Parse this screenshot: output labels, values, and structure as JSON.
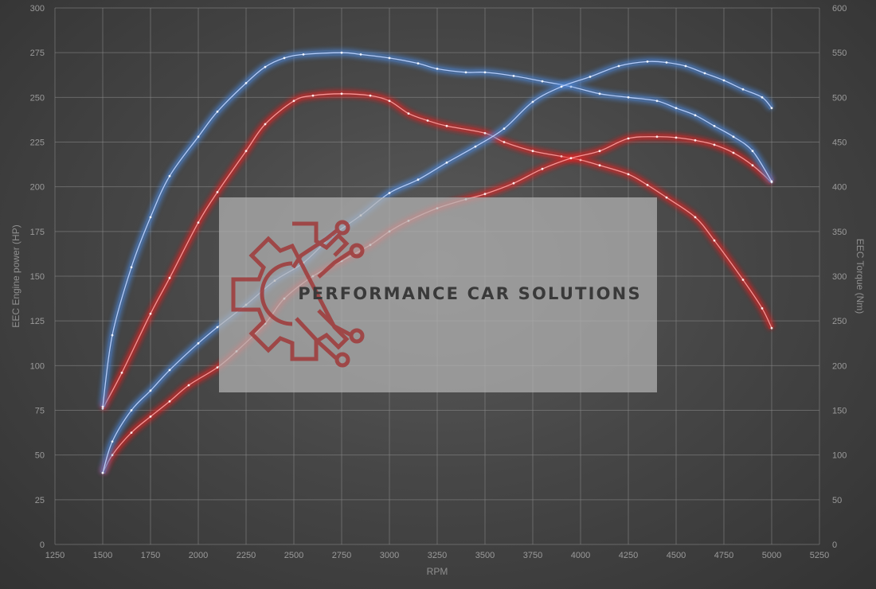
{
  "chart_data": {
    "type": "line",
    "xlabel": "RPM",
    "ylabel_left": "EEC Engine power (HP)",
    "ylabel_right": "EEC Torque (Nm)",
    "xlim": [
      1250,
      5250
    ],
    "xticks": [
      1250,
      1500,
      1750,
      2000,
      2250,
      2500,
      2750,
      3000,
      3250,
      3500,
      3750,
      4000,
      4250,
      4500,
      4750,
      5000,
      5250
    ],
    "ylim_left": [
      0,
      300
    ],
    "yticks_left": [
      0,
      25,
      50,
      75,
      100,
      125,
      150,
      175,
      200,
      225,
      250,
      275,
      300
    ],
    "ylim_right": [
      0,
      600
    ],
    "yticks_right": [
      0,
      50,
      100,
      150,
      200,
      250,
      300,
      350,
      400,
      450,
      500,
      550,
      600
    ],
    "grid": true,
    "series": [
      {
        "color": "#e02020",
        "axis": "left",
        "x": [
          1500,
          1600,
          1750,
          1850,
          2000,
          2100,
          2250,
          2350,
          2500,
          2600,
          2750,
          2900,
          3000,
          3100,
          3200,
          3300,
          3500,
          3600,
          3750,
          3900,
          4000,
          4100,
          4250,
          4350,
          4450,
          4600,
          4700,
          4850,
          4950,
          5000
        ],
        "values": [
          76,
          96,
          129,
          149,
          180,
          197,
          220,
          235,
          248,
          251,
          252,
          251,
          248,
          241,
          237,
          234,
          230,
          225,
          220,
          217,
          215,
          212,
          207,
          201,
          194,
          183,
          170,
          148,
          132,
          121
        ]
      },
      {
        "color": "#e02020",
        "axis": "right",
        "x": [
          1500,
          1550,
          1650,
          1750,
          1850,
          1950,
          2100,
          2200,
          2350,
          2450,
          2600,
          2750,
          2900,
          3000,
          3100,
          3250,
          3400,
          3500,
          3650,
          3800,
          3950,
          4100,
          4250,
          4400,
          4500,
          4600,
          4700,
          4800,
          4900,
          5000
        ],
        "values": [
          80,
          100,
          125,
          143,
          160,
          178,
          198,
          216,
          247,
          275,
          300,
          317,
          335,
          350,
          362,
          376,
          386,
          392,
          404,
          420,
          432,
          440,
          454,
          456,
          455,
          452,
          447,
          438,
          424,
          405
        ]
      },
      {
        "color": "#4c86d8",
        "axis": "left",
        "x": [
          1500,
          1550,
          1650,
          1750,
          1850,
          2000,
          2100,
          2250,
          2350,
          2450,
          2550,
          2750,
          2850,
          3000,
          3150,
          3250,
          3400,
          3500,
          3650,
          3800,
          3950,
          4100,
          4250,
          4400,
          4500,
          4600,
          4700,
          4800,
          4900,
          5000
        ],
        "values": [
          77,
          117,
          155,
          183,
          206,
          228,
          242,
          258,
          267,
          272,
          274,
          275,
          274,
          272,
          269,
          266,
          264,
          264,
          262,
          259,
          256,
          252,
          250,
          248,
          244,
          240,
          234,
          228,
          220,
          203
        ]
      },
      {
        "color": "#4c86d8",
        "axis": "right",
        "x": [
          1500,
          1550,
          1650,
          1750,
          1850,
          2000,
          2100,
          2250,
          2400,
          2550,
          2700,
          2850,
          3000,
          3150,
          3300,
          3450,
          3600,
          3750,
          3900,
          4050,
          4200,
          4350,
          4450,
          4550,
          4650,
          4750,
          4850,
          4950,
          5000
        ],
        "values": [
          80,
          115,
          150,
          172,
          195,
          225,
          243,
          268,
          295,
          315,
          345,
          368,
          393,
          408,
          427,
          445,
          465,
          495,
          512,
          523,
          535,
          540,
          539,
          535,
          527,
          519,
          509,
          500,
          488
        ]
      }
    ]
  },
  "watermark": {
    "text": "PERFORMANCE CAR SOLUTIONS",
    "logo": "gear-circuit-logo",
    "colors": {
      "gear": "#a03a3a",
      "panel": "#a6a6a6",
      "text": "#3a3a3a"
    }
  }
}
